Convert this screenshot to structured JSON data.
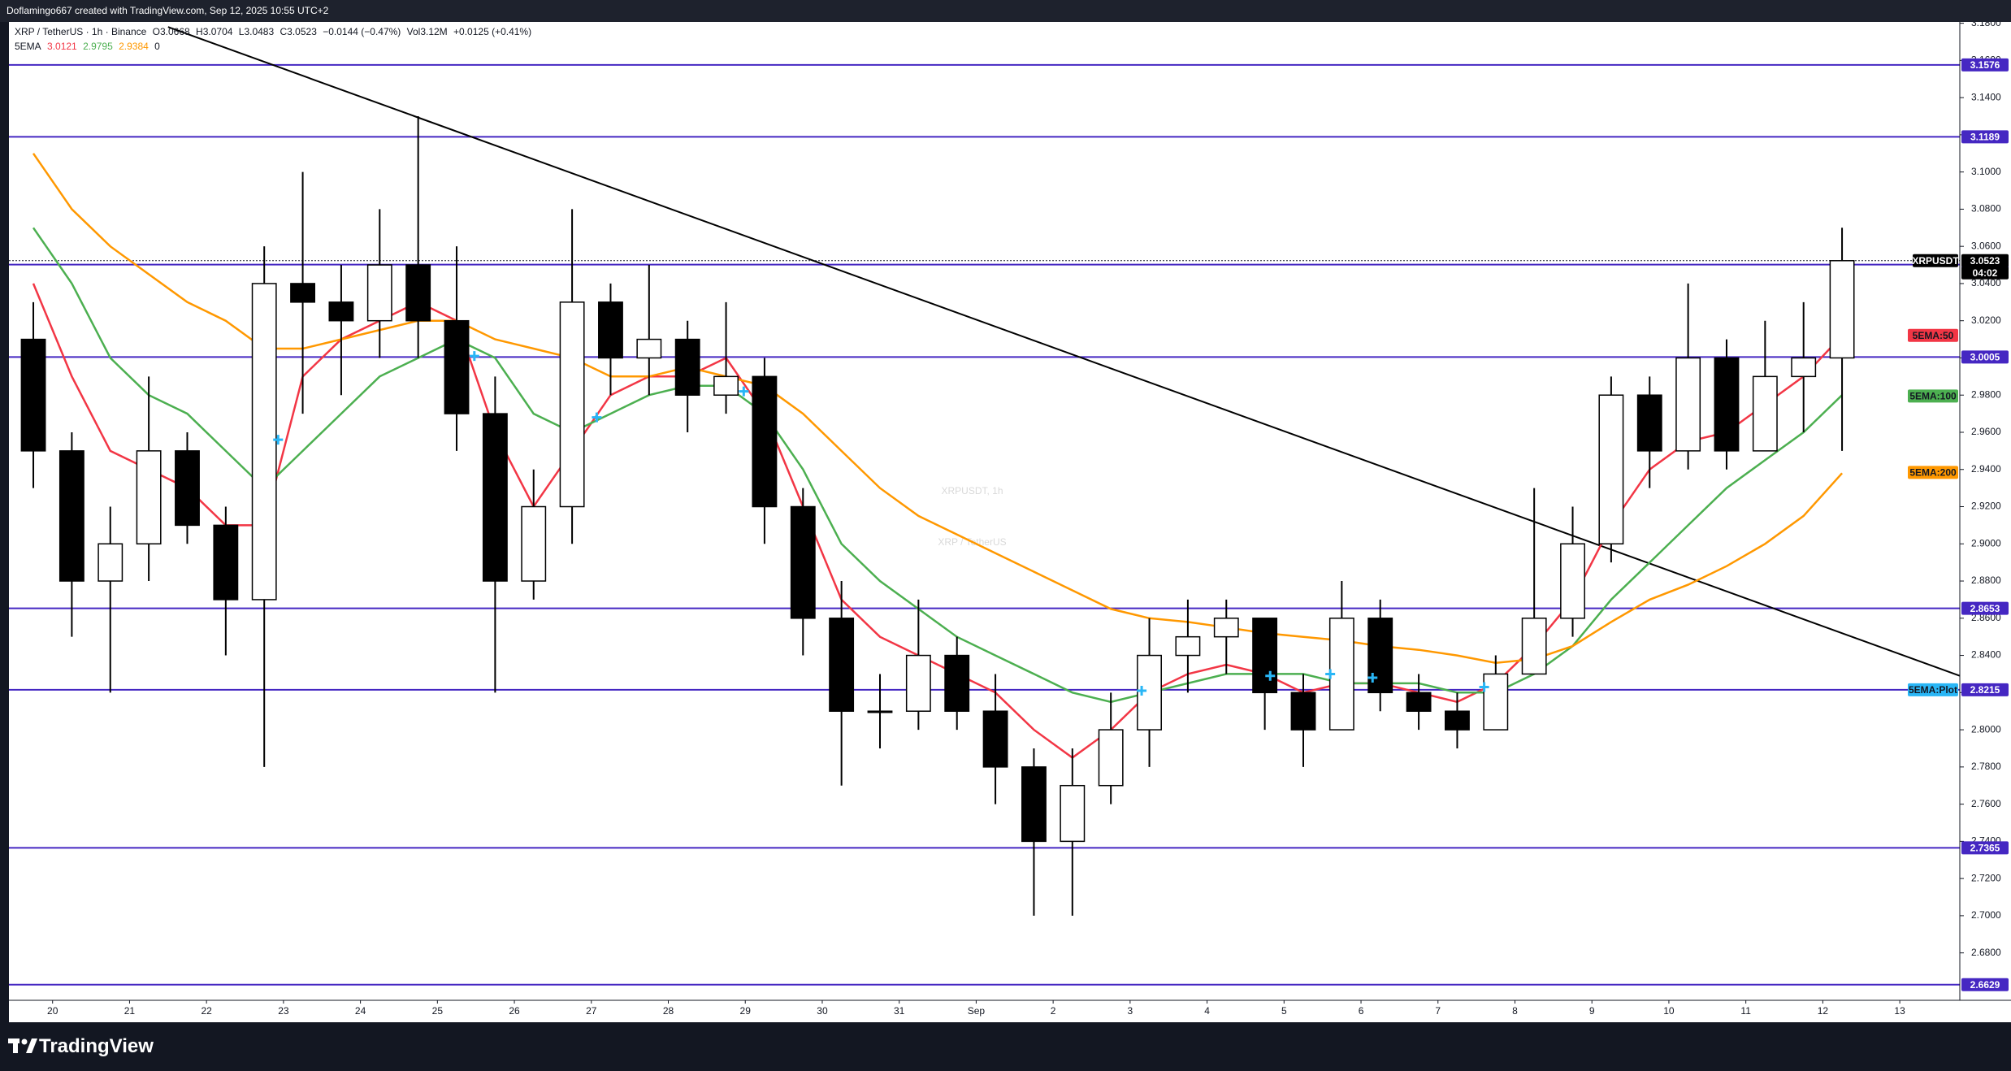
{
  "header": {
    "caption": "Doflamingo667 created with TradingView.com, Sep 12, 2025 10:55 UTC+2"
  },
  "footer": {
    "brand": "TradingView"
  },
  "chart_data": {
    "type": "candlestick",
    "title": "XRP / TetherUS · 1h · Binance",
    "watermark": "XRPUSDT, 1h",
    "watermark_subtitle": "XRP / TetherUS",
    "ohlc": [
      {
        "label": "O",
        "value": 3.0668
      },
      {
        "label": "H",
        "value": 3.0704
      },
      {
        "label": "L",
        "value": 3.0483
      },
      {
        "label": "C",
        "value": 3.0523
      }
    ],
    "change": "−0.0144 (−0.47%)",
    "volume_label": "Vol",
    "volume": "3.12M",
    "change_volume": "+0.0125 (+0.41%)",
    "indicator": {
      "name": "5EMA",
      "values": [
        3.0121,
        2.9795,
        2.9384
      ],
      "plot_value": 0
    },
    "x": [
      -0.25,
      0.25,
      0.75,
      1.25,
      1.75,
      2.25,
      2.75,
      3.25,
      3.75,
      4.25,
      4.75,
      5.25,
      5.75,
      6.25,
      6.75,
      7.25,
      7.75,
      8.25,
      8.75,
      9.25,
      9.75,
      10.25,
      10.75,
      11.25,
      11.75,
      12.25,
      12.75,
      13.25,
      13.75,
      14.25,
      14.75,
      15.25,
      15.75,
      16.25,
      16.75,
      17.25,
      17.75,
      18.25,
      18.75,
      19.25,
      19.75,
      20.25,
      20.75,
      21.25,
      21.75,
      22.25,
      22.75,
      23.25
    ],
    "open": [
      3.01,
      2.95,
      2.88,
      2.9,
      2.95,
      2.91,
      2.87,
      3.04,
      3.03,
      3.02,
      3.05,
      3.02,
      2.97,
      2.88,
      2.92,
      3.03,
      3.0,
      3.01,
      2.98,
      2.99,
      2.92,
      2.86,
      2.81,
      2.81,
      2.84,
      2.81,
      2.78,
      2.74,
      2.77,
      2.8,
      2.84,
      2.85,
      2.86,
      2.82,
      2.8,
      2.86,
      2.82,
      2.81,
      2.8,
      2.83,
      2.86,
      2.9,
      2.98,
      2.95,
      3.0,
      2.95,
      2.99,
      3.0
    ],
    "high": [
      3.03,
      2.96,
      2.92,
      2.99,
      2.96,
      2.92,
      3.06,
      3.1,
      3.05,
      3.08,
      3.13,
      3.06,
      2.99,
      2.94,
      3.08,
      3.04,
      3.05,
      3.02,
      3.03,
      3.0,
      2.93,
      2.88,
      2.83,
      2.87,
      2.85,
      2.83,
      2.79,
      2.79,
      2.82,
      2.86,
      2.87,
      2.87,
      2.86,
      2.83,
      2.88,
      2.87,
      2.83,
      2.82,
      2.84,
      2.93,
      2.92,
      2.99,
      2.99,
      3.04,
      3.01,
      3.02,
      3.03,
      3.07
    ],
    "low": [
      2.93,
      2.85,
      2.82,
      2.88,
      2.9,
      2.84,
      2.78,
      2.97,
      2.98,
      3.0,
      3.0,
      2.95,
      2.82,
      2.87,
      2.9,
      2.98,
      2.98,
      2.96,
      2.97,
      2.9,
      2.84,
      2.77,
      2.79,
      2.8,
      2.8,
      2.76,
      2.7,
      2.7,
      2.76,
      2.78,
      2.82,
      2.83,
      2.8,
      2.78,
      2.8,
      2.81,
      2.8,
      2.79,
      2.8,
      2.83,
      2.85,
      2.89,
      2.93,
      2.94,
      2.94,
      2.95,
      2.96,
      2.95
    ],
    "close": [
      2.95,
      2.88,
      2.9,
      2.95,
      2.91,
      2.87,
      3.04,
      3.03,
      3.02,
      3.05,
      3.02,
      2.97,
      2.88,
      2.92,
      3.03,
      3.0,
      3.01,
      2.98,
      2.99,
      2.92,
      2.86,
      2.81,
      2.81,
      2.84,
      2.81,
      2.78,
      2.74,
      2.77,
      2.8,
      2.84,
      2.85,
      2.86,
      2.82,
      2.8,
      2.86,
      2.82,
      2.81,
      2.8,
      2.83,
      2.86,
      2.9,
      2.98,
      2.95,
      3.0,
      2.95,
      2.99,
      3.0,
      3.0523
    ],
    "up_color": "#ffffff",
    "down_color": "#000000",
    "series": [
      {
        "name": "5EMA:50",
        "color": "#f23645",
        "values": [
          3.04,
          2.99,
          2.95,
          2.94,
          2.93,
          2.91,
          2.91,
          2.99,
          3.01,
          3.02,
          3.03,
          3.02,
          2.96,
          2.92,
          2.95,
          2.98,
          2.99,
          2.99,
          3.0,
          2.97,
          2.92,
          2.87,
          2.85,
          2.84,
          2.83,
          2.82,
          2.8,
          2.785,
          2.8,
          2.82,
          2.83,
          2.835,
          2.83,
          2.82,
          2.825,
          2.825,
          2.82,
          2.815,
          2.825,
          2.845,
          2.87,
          2.91,
          2.94,
          2.955,
          2.96,
          2.975,
          2.99,
          3.012
        ]
      },
      {
        "name": "5EMA:100",
        "color": "#4caf50",
        "values": [
          3.07,
          3.04,
          3.0,
          2.98,
          2.97,
          2.95,
          2.93,
          2.95,
          2.97,
          2.99,
          3.0,
          3.01,
          3.0,
          2.97,
          2.96,
          2.97,
          2.98,
          2.985,
          2.985,
          2.97,
          2.94,
          2.9,
          2.88,
          2.865,
          2.85,
          2.84,
          2.83,
          2.82,
          2.815,
          2.82,
          2.825,
          2.83,
          2.83,
          2.83,
          2.825,
          2.825,
          2.825,
          2.82,
          2.82,
          2.83,
          2.845,
          2.87,
          2.89,
          2.91,
          2.93,
          2.945,
          2.96,
          2.98
        ]
      },
      {
        "name": "5EMA:200",
        "color": "#ff9800",
        "values": [
          3.11,
          3.08,
          3.06,
          3.045,
          3.03,
          3.02,
          3.005,
          3.005,
          3.01,
          3.015,
          3.02,
          3.02,
          3.01,
          3.005,
          3.0,
          2.99,
          2.99,
          2.995,
          2.99,
          2.985,
          2.97,
          2.95,
          2.93,
          2.915,
          2.905,
          2.895,
          2.885,
          2.875,
          2.865,
          2.86,
          2.858,
          2.855,
          2.852,
          2.85,
          2.848,
          2.845,
          2.843,
          2.84,
          2.836,
          2.838,
          2.845,
          2.858,
          2.87,
          2.878,
          2.888,
          2.9,
          2.915,
          2.938
        ]
      }
    ],
    "plot": {
      "name": "5EMA:Plot",
      "color": "#29b6f6",
      "x": [
        2.93,
        5.48,
        7.07,
        8.98,
        14.15,
        15.82,
        16.6,
        17.15,
        18.6
      ],
      "y": [
        2.956,
        3.001,
        2.968,
        2.982,
        2.821,
        2.829,
        2.83,
        2.828,
        2.823
      ]
    },
    "levels": [
      3.1576,
      3.1189,
      3.0502,
      3.0005,
      2.8653,
      2.8215,
      2.7365,
      2.6629
    ],
    "level_color": "#4527c2",
    "trendline": {
      "x": [
        1.5,
        24.78
      ],
      "y": [
        3.178,
        2.829
      ],
      "color": "#000000"
    },
    "symbol": "XRPUSDT",
    "last_price": 3.0523,
    "countdown": "04:02",
    "xlim": [
      -0.567,
      24.78
    ],
    "ylim": [
      2.6545,
      3.1807
    ],
    "xticks": [
      {
        "value": 0,
        "label": "20"
      },
      {
        "value": 1,
        "label": "21"
      },
      {
        "value": 2,
        "label": "22"
      },
      {
        "value": 3,
        "label": "23"
      },
      {
        "value": 4,
        "label": "24"
      },
      {
        "value": 5,
        "label": "25"
      },
      {
        "value": 6,
        "label": "26"
      },
      {
        "value": 7,
        "label": "27"
      },
      {
        "value": 8,
        "label": "28"
      },
      {
        "value": 9,
        "label": "29"
      },
      {
        "value": 10,
        "label": "30"
      },
      {
        "value": 11,
        "label": "31"
      },
      {
        "value": 12,
        "label": "Sep"
      },
      {
        "value": 13,
        "label": "2"
      },
      {
        "value": 14,
        "label": "3"
      },
      {
        "value": 15,
        "label": "4"
      },
      {
        "value": 16,
        "label": "5"
      },
      {
        "value": 17,
        "label": "6"
      },
      {
        "value": 18,
        "label": "7"
      },
      {
        "value": 19,
        "label": "8"
      },
      {
        "value": 20,
        "label": "9"
      },
      {
        "value": 21,
        "label": "10"
      },
      {
        "value": 22,
        "label": "11"
      },
      {
        "value": 23,
        "label": "12"
      },
      {
        "value": 24,
        "label": "13"
      }
    ],
    "yticks": [
      {
        "value": 2.68,
        "label": "2.6800"
      },
      {
        "value": 2.7,
        "label": "2.7000"
      },
      {
        "value": 2.72,
        "label": "2.7200"
      },
      {
        "value": 2.74,
        "label": "2.7400"
      },
      {
        "value": 2.76,
        "label": "2.7600"
      },
      {
        "value": 2.78,
        "label": "2.7800"
      },
      {
        "value": 2.8,
        "label": "2.8000"
      },
      {
        "value": 2.82,
        "label": "2.8200"
      },
      {
        "value": 2.84,
        "label": "2.8400"
      },
      {
        "value": 2.86,
        "label": "2.8600"
      },
      {
        "value": 2.88,
        "label": "2.8800"
      },
      {
        "value": 2.9,
        "label": "2.9000"
      },
      {
        "value": 2.92,
        "label": "2.9200"
      },
      {
        "value": 2.94,
        "label": "2.9400"
      },
      {
        "value": 2.96,
        "label": "2.9600"
      },
      {
        "value": 2.98,
        "label": "2.9800"
      },
      {
        "value": 3.0,
        "label": "3.0000"
      },
      {
        "value": 3.02,
        "label": "3.0200"
      },
      {
        "value": 3.04,
        "label": "3.0400"
      },
      {
        "value": 3.06,
        "label": "3.0600"
      },
      {
        "value": 3.08,
        "label": "3.0800"
      },
      {
        "value": 3.1,
        "label": "3.1000"
      },
      {
        "value": 3.12,
        "label": "3.1200"
      },
      {
        "value": 3.14,
        "label": "3.1400"
      },
      {
        "value": 3.16,
        "label": "3.1600"
      },
      {
        "value": 3.18,
        "label": "3.1800"
      }
    ]
  }
}
